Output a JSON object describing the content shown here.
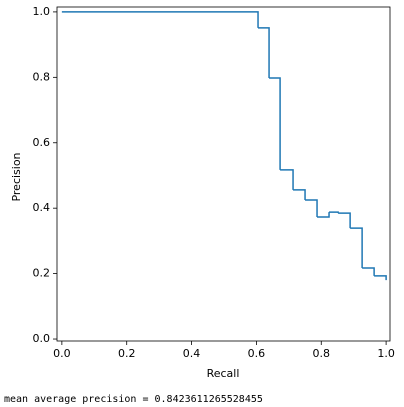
{
  "chart_data": {
    "type": "step",
    "xlabel": "Recall",
    "ylabel": "Precision",
    "annotation": "mean average precision = 0.8423611265528455",
    "x": [
      0,
      0.605,
      0.639,
      0.673,
      0.713,
      0.75,
      0.787,
      0.824,
      0.852,
      0.889,
      0.926,
      0.963,
      1.0
    ],
    "series": [
      {
        "name": "precision",
        "color": "#1f77b4",
        "values": [
          1.0,
          0.951,
          0.798,
          0.517,
          0.456,
          0.425,
          0.373,
          0.388,
          0.385,
          0.339,
          0.217,
          0.193,
          0.18
        ]
      }
    ],
    "xlim": [
      -0.015,
      1.012
    ],
    "ylim": [
      -0.006,
      1.015
    ],
    "xticks": [
      {
        "value": 0,
        "label": "0.0"
      },
      0.2,
      0.4,
      0.6,
      0.8,
      {
        "value": 1,
        "label": "1.0"
      }
    ],
    "yticks": [
      {
        "value": 0,
        "label": "0.0"
      },
      0.2,
      0.4,
      0.6,
      0.8,
      {
        "value": 1,
        "label": "1.0"
      }
    ],
    "grid": false
  }
}
